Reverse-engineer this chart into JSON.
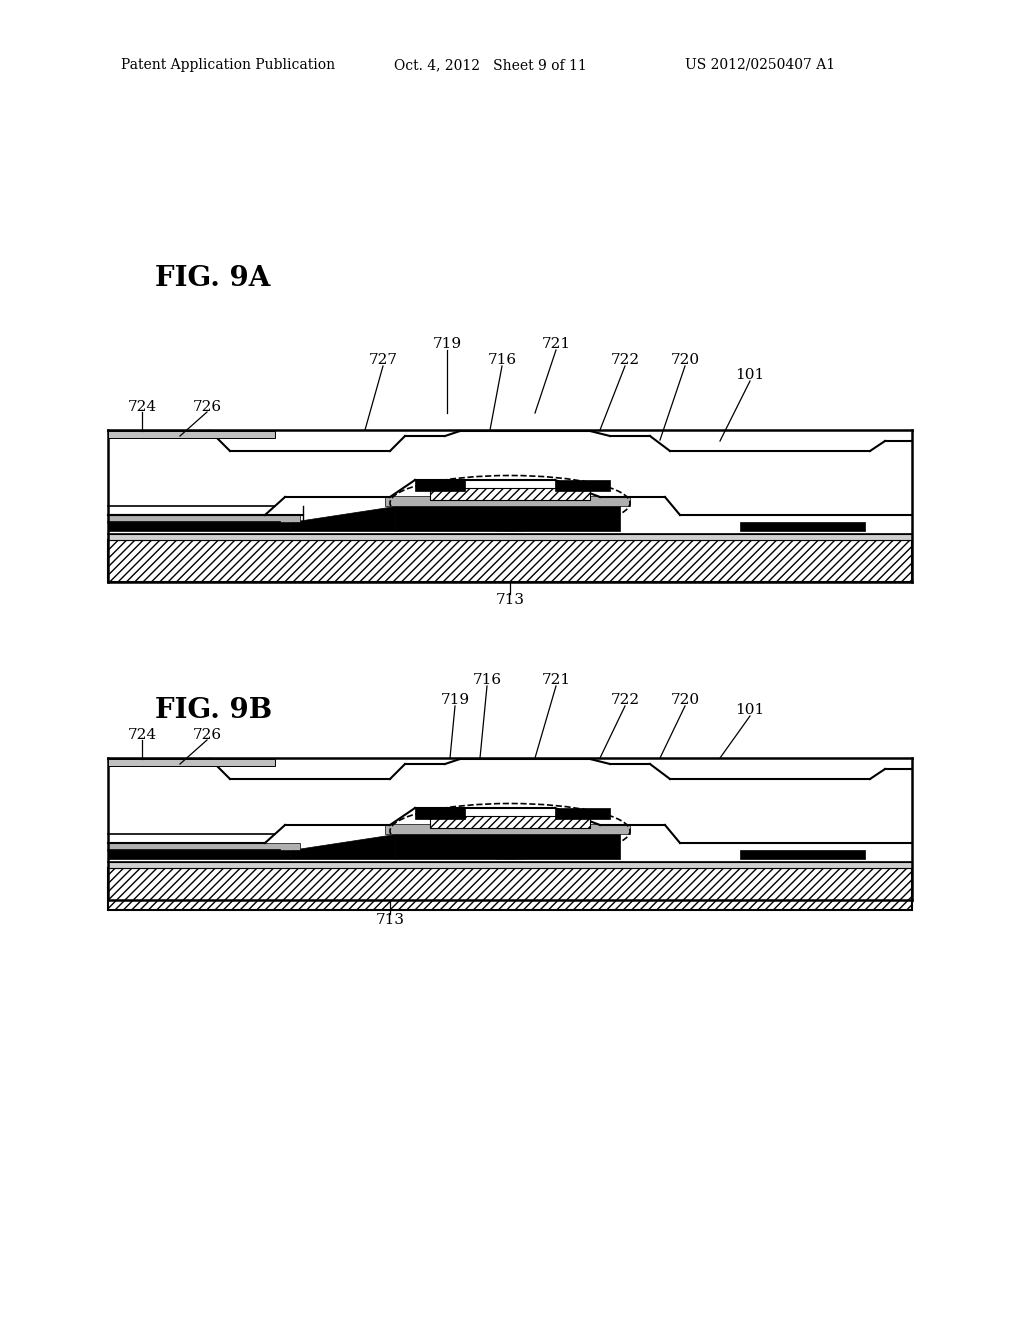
{
  "bg_color": "#ffffff",
  "header_left": "Patent Application Publication",
  "header_mid": "Oct. 4, 2012   Sheet 9 of 11",
  "header_right": "US 2012/0250407 A1",
  "fig9a_label": "FIG. 9A",
  "fig9b_label": "FIG. 9B",
  "hatch_diag": "////",
  "hatch_fine": "////",
  "label_color": "#000000",
  "line_color": "#000000"
}
